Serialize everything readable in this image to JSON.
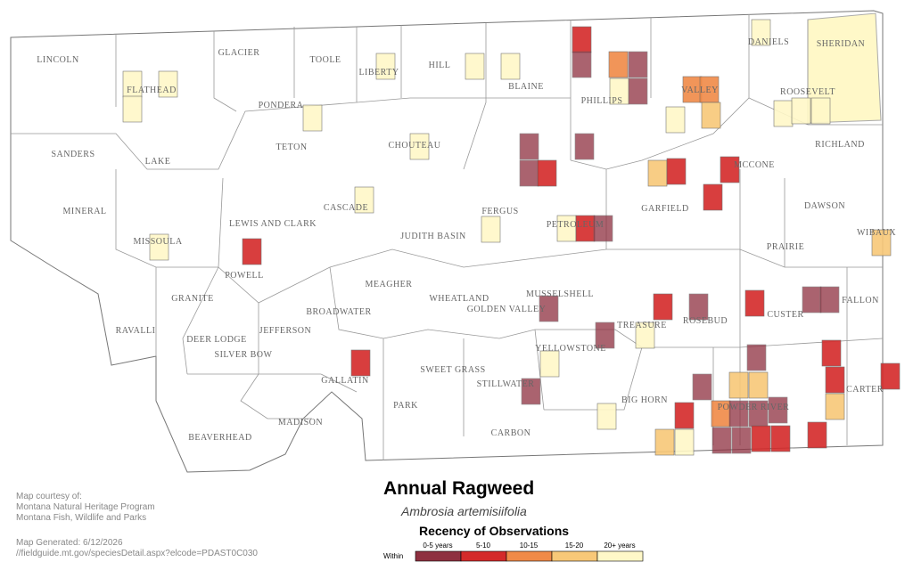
{
  "map": {
    "title": "Annual Ragweed",
    "subtitle": "Ambrosia artemisiifolia",
    "counties": [
      "LINCOLN",
      "FLATHEAD",
      "GLACIER",
      "TOOLE",
      "LIBERTY",
      "HILL",
      "BLAINE",
      "PHILLIPS",
      "VALLEY",
      "DANIELS",
      "SHERIDAN",
      "ROOSEVELT",
      "PONDERA",
      "TETON",
      "CHOUTEAU",
      "SANDERS",
      "LAKE",
      "MINERAL",
      "MISSOULA",
      "CASCADE",
      "FERGUS",
      "PETROLEUM",
      "GARFIELD",
      "MCCONE",
      "RICHLAND",
      "DAWSON",
      "WIBAUX",
      "PRAIRIE",
      "LEWIS AND CLARK",
      "JUDITH BASIN",
      "POWELL",
      "MEAGHER",
      "GRANITE",
      "WHEATLAND",
      "GOLDEN VALLEY",
      "MUSSELSHELL",
      "BROADWATER",
      "RAVALLI",
      "DEER LODGE",
      "JEFFERSON",
      "SILVER BOW",
      "GALLATIN",
      "SWEET GRASS",
      "STILLWATER",
      "YELLOWSTONE",
      "TREASURE",
      "ROSEBUD",
      "CUSTER",
      "FALLON",
      "CARTER",
      "POWDER RIVER",
      "BIG HORN",
      "CARBON",
      "PARK",
      "MADISON",
      "BEAVERHEAD"
    ],
    "legend": {
      "title": "Recency of Observations",
      "prefix": "Within",
      "items": [
        {
          "label": "0-5 years",
          "color": "#8e3040"
        },
        {
          "label": "5-10",
          "color": "#d42a2a"
        },
        {
          "label": "10-15",
          "color": "#f08a48"
        },
        {
          "label": "15-20",
          "color": "#f8c878"
        },
        {
          "label": "20+ years",
          "color": "#fff8c8"
        }
      ]
    },
    "credits": [
      "Map courtesy of:",
      "Montana Natural Heritage Program",
      "Montana Fish, Wildlife and Parks"
    ],
    "generated": [
      "Map Generated: 6/12/2026",
      "//fieldguide.mt.gov/speciesDetail.aspx?elcode=PDAST0C030"
    ]
  }
}
